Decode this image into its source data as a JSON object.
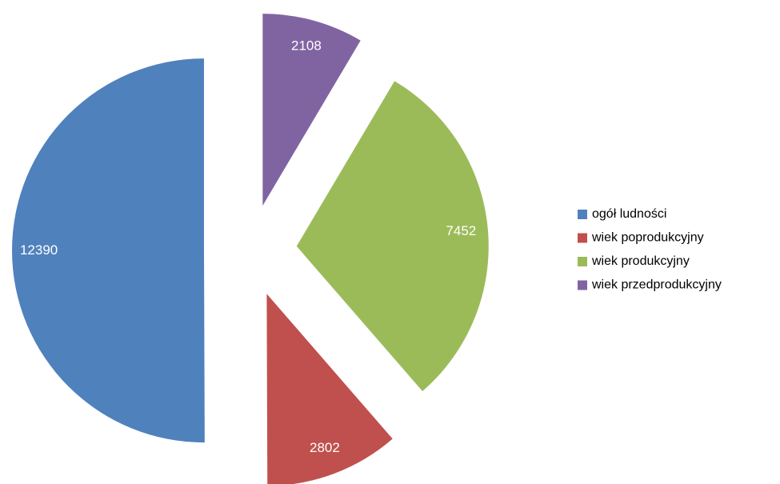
{
  "chart_data": {
    "type": "pie",
    "categories": [
      "ogół ludności",
      "wiek poprodukcyjny",
      "wiek produkcyjny",
      "wiek przedprodukcyjny"
    ],
    "values": [
      12390,
      2802,
      7452,
      2108
    ],
    "colors": [
      "#4f81bd",
      "#c0504d",
      "#9bbb59",
      "#8064a2"
    ],
    "exploded": true,
    "legend": "right"
  }
}
